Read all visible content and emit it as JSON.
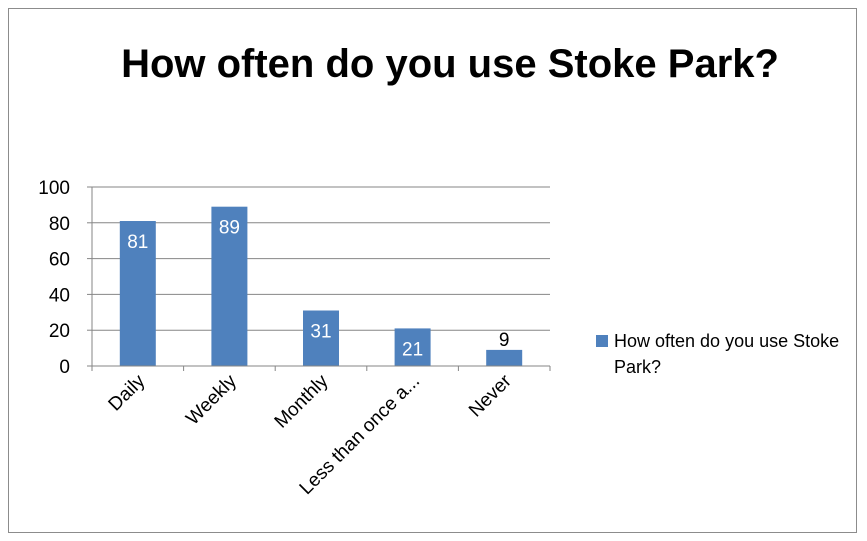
{
  "chart_data": {
    "type": "bar",
    "title": "How often do you use Stoke Park?",
    "categories": [
      "Daily",
      "Weekly",
      "Monthly",
      "Less than once a...",
      "Never"
    ],
    "series": [
      {
        "name": "How often do you use Stoke Park?",
        "values": [
          81,
          89,
          31,
          21,
          9
        ]
      }
    ],
    "data_labels": [
      "81",
      "89",
      "31",
      "21",
      "9"
    ],
    "yticks": [
      "0",
      "20",
      "40",
      "60",
      "80",
      "100"
    ],
    "ylim": [
      0,
      100
    ],
    "xlabel": "",
    "ylabel": "",
    "grid": true,
    "legend_position": "right",
    "colors": {
      "bar": "#4f81bd",
      "grid": "#868686",
      "axis": "#868686"
    }
  }
}
